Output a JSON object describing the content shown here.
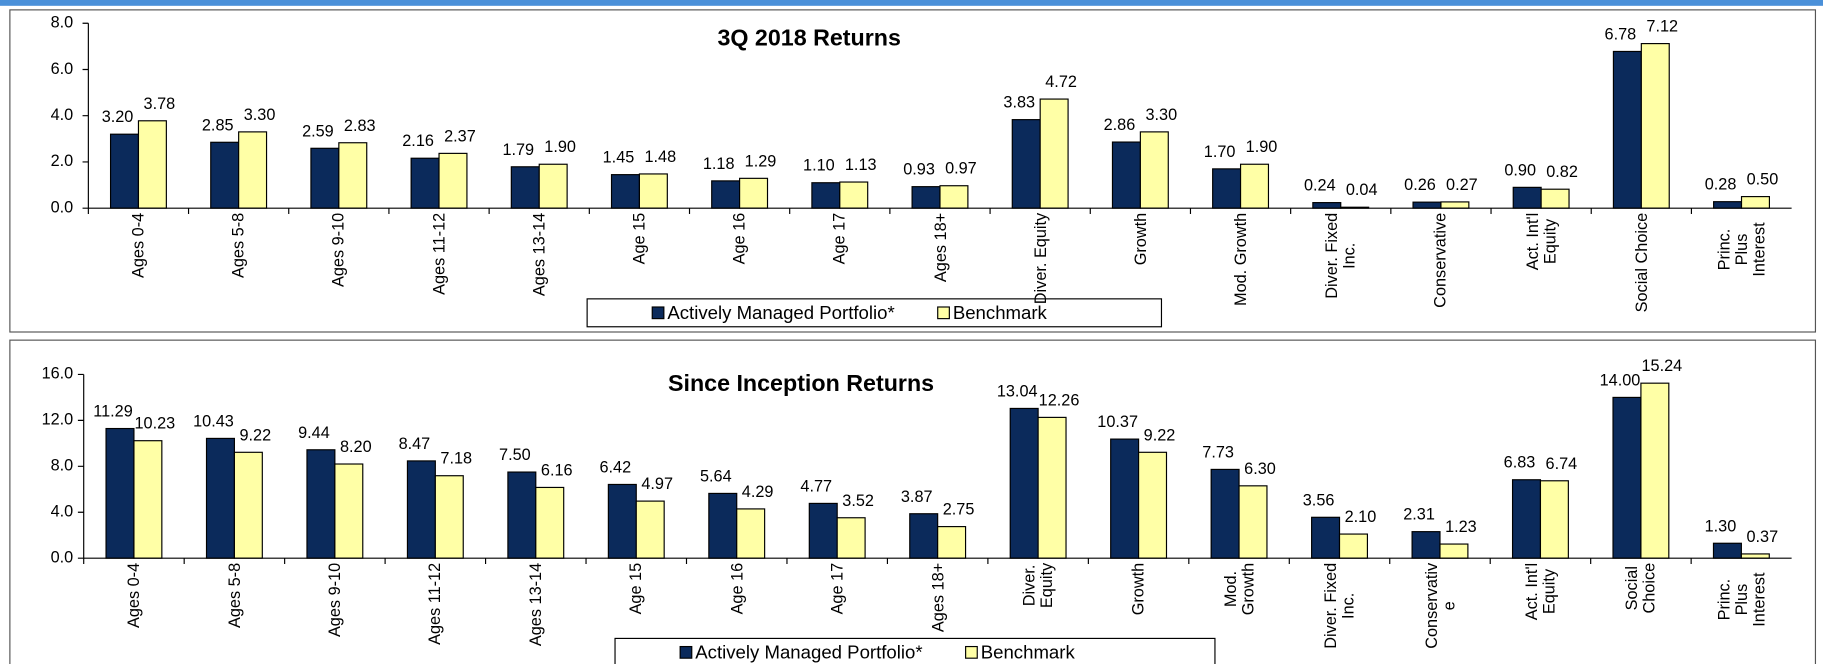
{
  "chart_data": [
    {
      "type": "bar",
      "title": "3Q 2018 Returns",
      "categories": [
        "Ages 0-4",
        "Ages 5-8",
        "Ages 9-10",
        "Ages 11-12",
        "Ages 13-14",
        "Age 15",
        "Age 16",
        "Age 17",
        "Ages 18+",
        "Diver. Equity",
        "Growth",
        "Mod. Growth",
        "Diver. Fixed\nInc.",
        "Conservative",
        "Act. Int'l\nEquity",
        "Social Choice",
        "Princ. Plus\nInterest"
      ],
      "series": [
        {
          "name": "Actively Managed Portfolio*",
          "color": "#0b2a5b",
          "values": [
            3.2,
            2.85,
            2.59,
            2.16,
            1.79,
            1.45,
            1.18,
            1.1,
            0.93,
            3.83,
            2.86,
            1.7,
            0.24,
            0.26,
            0.9,
            6.78,
            0.28
          ],
          "value_labels": [
            "3.20",
            "2.85",
            "2.59",
            "2.16",
            "1.79",
            "1.45",
            "1.18",
            "1.10",
            "0.93",
            "3.83",
            "2.86",
            "1.70",
            "0.24",
            "0.26",
            "0.90",
            "6.78",
            "0.28"
          ]
        },
        {
          "name": "Benchmark",
          "color": "#ffffa6",
          "values": [
            3.78,
            3.3,
            2.83,
            2.37,
            1.9,
            1.48,
            1.29,
            1.13,
            0.97,
            4.72,
            3.3,
            1.9,
            0.04,
            0.27,
            0.82,
            7.12,
            0.5
          ],
          "value_labels": [
            "3.78",
            "3.30",
            "2.83",
            "2.37",
            "1.90",
            "1.48",
            "1.29",
            "1.13",
            "0.97",
            "4.72",
            "3.30",
            "1.90",
            "0.04",
            "0.27",
            "0.82",
            "7.12",
            "0.50"
          ]
        }
      ],
      "ylim": [
        0,
        8
      ],
      "yticks": [
        {
          "value": 0,
          "label": "0.0"
        },
        {
          "value": 2,
          "label": "2.0"
        },
        {
          "value": 4,
          "label": "4.0"
        },
        {
          "value": 6,
          "label": "6.0"
        },
        {
          "value": 8,
          "label": "8.0"
        }
      ],
      "grid": false,
      "legend": "bottom"
    },
    {
      "type": "bar",
      "title": "Since Inception Returns",
      "categories": [
        "Ages 0-4",
        "Ages 5-8",
        "Ages 9-10",
        "Ages 11-12",
        "Ages 13-14",
        "Age 15",
        "Age 16",
        "Age 17",
        "Ages 18+",
        "Diver.\nEquity",
        "Growth",
        "Mod.\nGrowth",
        "Diver. Fixed\nInc.",
        "Conservativ\ne",
        "Act. Int'l\nEquity",
        "Social\nChoice",
        "Princ. Plus\nInterest"
      ],
      "series": [
        {
          "name": "Actively Managed Portfolio*",
          "color": "#0b2a5b",
          "values": [
            11.29,
            10.43,
            9.44,
            8.47,
            7.5,
            6.42,
            5.64,
            4.77,
            3.87,
            13.04,
            10.37,
            7.73,
            3.56,
            2.31,
            6.83,
            14,
            1.3
          ],
          "value_labels": [
            "11.29",
            "10.43",
            "9.44",
            "8.47",
            "7.50",
            "6.42",
            "5.64",
            "4.77",
            "3.87",
            "13.04",
            "10.37",
            "7.73",
            "3.56",
            "2.31",
            "6.83",
            "14.00",
            "1.30"
          ]
        },
        {
          "name": "Benchmark",
          "color": "#ffffa6",
          "values": [
            10.23,
            9.22,
            8.2,
            7.18,
            6.16,
            4.97,
            4.29,
            3.52,
            2.75,
            12.26,
            9.22,
            6.3,
            2.1,
            1.23,
            6.74,
            15.24,
            0.37
          ],
          "value_labels": [
            "10.23",
            "9.22",
            "8.20",
            "7.18",
            "6.16",
            "4.97",
            "4.29",
            "3.52",
            "2.75",
            "12.26",
            "9.22",
            "6.30",
            "2.10",
            "1.23",
            "6.74",
            "15.24",
            "0.37"
          ]
        }
      ],
      "ylim": [
        0,
        16
      ],
      "yticks": [
        {
          "value": 0,
          "label": "0.0"
        },
        {
          "value": 4,
          "label": "4.0"
        },
        {
          "value": 8,
          "label": "8.0"
        },
        {
          "value": 12,
          "label": "12.0"
        },
        {
          "value": 16,
          "label": "16.0"
        }
      ],
      "grid": false,
      "legend": "bottom"
    }
  ]
}
